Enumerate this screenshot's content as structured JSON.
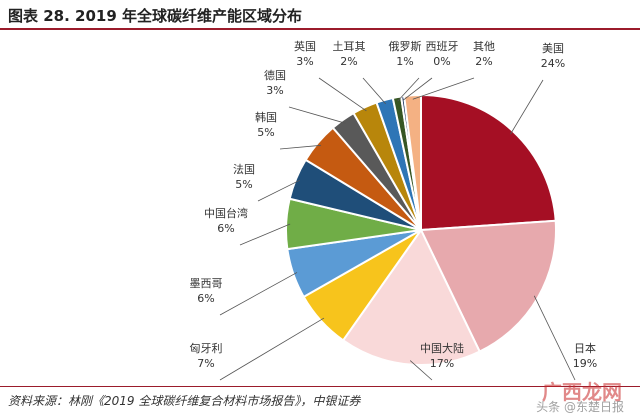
{
  "title": "图表 28. 2019 年全球碳纤维产能区域分布",
  "source": "资料来源：林刚《2019 全球碳纤维复合材料市场报告》，中银证券",
  "watermark": "广西龙网",
  "watermark_sub": "头条 @东楚日报",
  "chart_data": {
    "type": "pie",
    "title": "图表 28. 2019 年全球碳纤维产能区域分布",
    "slices": [
      {
        "label": "美国",
        "value": 24,
        "display": "24%",
        "color": "#a50f24"
      },
      {
        "label": "日本",
        "value": 19,
        "display": "19%",
        "color": "#e7a9ad"
      },
      {
        "label": "中国大陆",
        "value": 17,
        "display": "17%",
        "color": "#f9d9d9"
      },
      {
        "label": "匈牙利",
        "value": 7,
        "display": "7%",
        "color": "#f7c41c"
      },
      {
        "label": "墨西哥",
        "value": 6,
        "display": "6%",
        "color": "#5b9bd5"
      },
      {
        "label": "中国台湾",
        "value": 6,
        "display": "6%",
        "color": "#70ad47"
      },
      {
        "label": "法国",
        "value": 5,
        "display": "5%",
        "color": "#1f4e79"
      },
      {
        "label": "韩国",
        "value": 5,
        "display": "5%",
        "color": "#c55a11"
      },
      {
        "label": "德国",
        "value": 3,
        "display": "3%",
        "color": "#595959"
      },
      {
        "label": "英国",
        "value": 3,
        "display": "3%",
        "color": "#b8860b"
      },
      {
        "label": "土耳其",
        "value": 2,
        "display": "2%",
        "color": "#2e75b6"
      },
      {
        "label": "俄罗斯",
        "value": 1,
        "display": "1%",
        "color": "#375623"
      },
      {
        "label": "西班牙",
        "value": 0,
        "display": "0%",
        "color": "#1f3864"
      },
      {
        "label": "其他",
        "value": 2,
        "display": "2%",
        "color": "#f4b183"
      }
    ]
  }
}
